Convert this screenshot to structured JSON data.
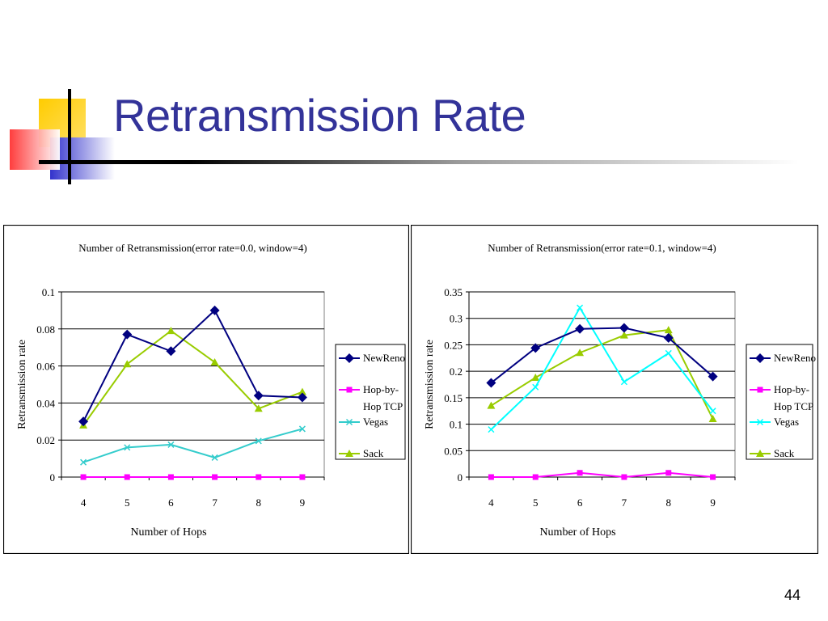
{
  "slide": {
    "title": "Retransmission Rate",
    "page_number": "44",
    "title_color": "#333399"
  },
  "chart_data": [
    {
      "type": "line",
      "title": "Number of Retransmission(error rate=0.0, window=4)",
      "xlabel": "Number of Hops",
      "ylabel": "Retransmission rate",
      "categories": [
        "4",
        "5",
        "6",
        "7",
        "8",
        "9"
      ],
      "y_ticks": [
        "0",
        "0.02",
        "0.04",
        "0.06",
        "0.08",
        "0.1"
      ],
      "ylim": [
        0,
        0.1
      ],
      "grid": true,
      "legend_position": "right",
      "series": [
        {
          "name": "NewReno",
          "values": [
            0.03,
            0.077,
            0.068,
            0.09,
            0.044,
            0.043
          ],
          "color": "#000080",
          "marker": "diamond"
        },
        {
          "name": "Hop-by-Hop TCP",
          "values": [
            0,
            0,
            0,
            0,
            0,
            0
          ],
          "color": "#ff00ff",
          "marker": "square"
        },
        {
          "name": "Vegas",
          "values": [
            0.008,
            0.016,
            0.0175,
            0.0105,
            0.0195,
            0.026
          ],
          "color": "#33cccc",
          "marker": "x"
        },
        {
          "name": "Sack",
          "values": [
            0.028,
            0.061,
            0.079,
            0.062,
            0.037,
            0.046
          ],
          "color": "#99cc00",
          "marker": "triangle"
        }
      ]
    },
    {
      "type": "line",
      "title": "Number of Retransmission(error rate=0.1, window=4)",
      "xlabel": "Number of Hops",
      "ylabel": "Retransmission rate",
      "categories": [
        "4",
        "5",
        "6",
        "7",
        "8",
        "9"
      ],
      "y_ticks": [
        "0",
        "0.05",
        "0.1",
        "0.15",
        "0.2",
        "0.25",
        "0.3",
        "0.35"
      ],
      "ylim": [
        0,
        0.35
      ],
      "grid": true,
      "legend_position": "right",
      "series": [
        {
          "name": "NewReno",
          "values": [
            0.178,
            0.244,
            0.28,
            0.282,
            0.263,
            0.19
          ],
          "color": "#000080",
          "marker": "diamond"
        },
        {
          "name": "Hop-by-Hop TCP",
          "values": [
            0,
            0,
            0.008,
            0,
            0.008,
            0
          ],
          "color": "#ff00ff",
          "marker": "square"
        },
        {
          "name": "Vegas",
          "values": [
            0.09,
            0.17,
            0.32,
            0.18,
            0.234,
            0.125
          ],
          "color": "#00ffff",
          "marker": "x"
        },
        {
          "name": "Sack",
          "values": [
            0.135,
            0.188,
            0.235,
            0.268,
            0.278,
            0.11
          ],
          "color": "#99cc00",
          "marker": "triangle"
        }
      ]
    }
  ]
}
